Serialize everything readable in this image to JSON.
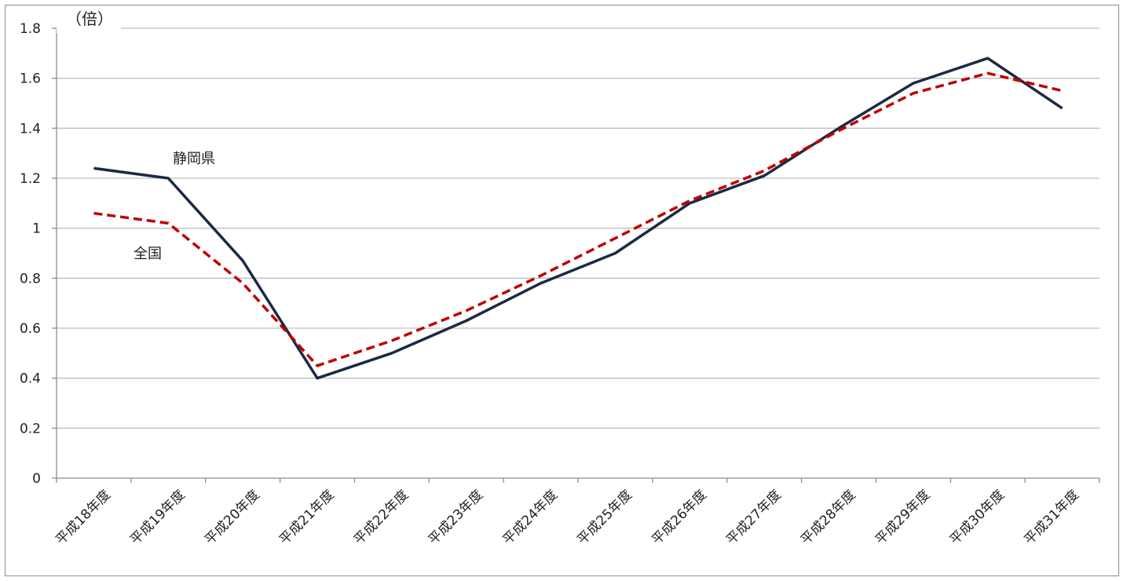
{
  "chart_data": {
    "type": "line",
    "y_unit": "（倍）",
    "categories": [
      "平成18年度",
      "平成19年度",
      "平成20年度",
      "平成21年度",
      "平成22年度",
      "平成23年度",
      "平成24年度",
      "平成25年度",
      "平成26年度",
      "平成27年度",
      "平成28年度",
      "平成29年度",
      "平成30年度",
      "平成31年度"
    ],
    "ylim": [
      0,
      1.8
    ],
    "yticks": [
      "0",
      "0.2",
      "0.4",
      "0.6",
      "0.8",
      "1",
      "1.2",
      "1.4",
      "1.6",
      "1.8"
    ],
    "grid": true,
    "series": [
      {
        "name": "静岡県",
        "color": "#1b2a44",
        "dash": "solid",
        "values": [
          1.24,
          1.2,
          0.87,
          0.4,
          0.5,
          0.63,
          0.78,
          0.9,
          1.1,
          1.21,
          1.4,
          1.58,
          1.68,
          1.48
        ]
      },
      {
        "name": "全国",
        "color": "#c00000",
        "dash": "dashed",
        "values": [
          1.06,
          1.02,
          0.78,
          0.45,
          0.55,
          0.67,
          0.81,
          0.96,
          1.11,
          1.23,
          1.39,
          1.54,
          1.62,
          1.55
        ]
      }
    ]
  }
}
